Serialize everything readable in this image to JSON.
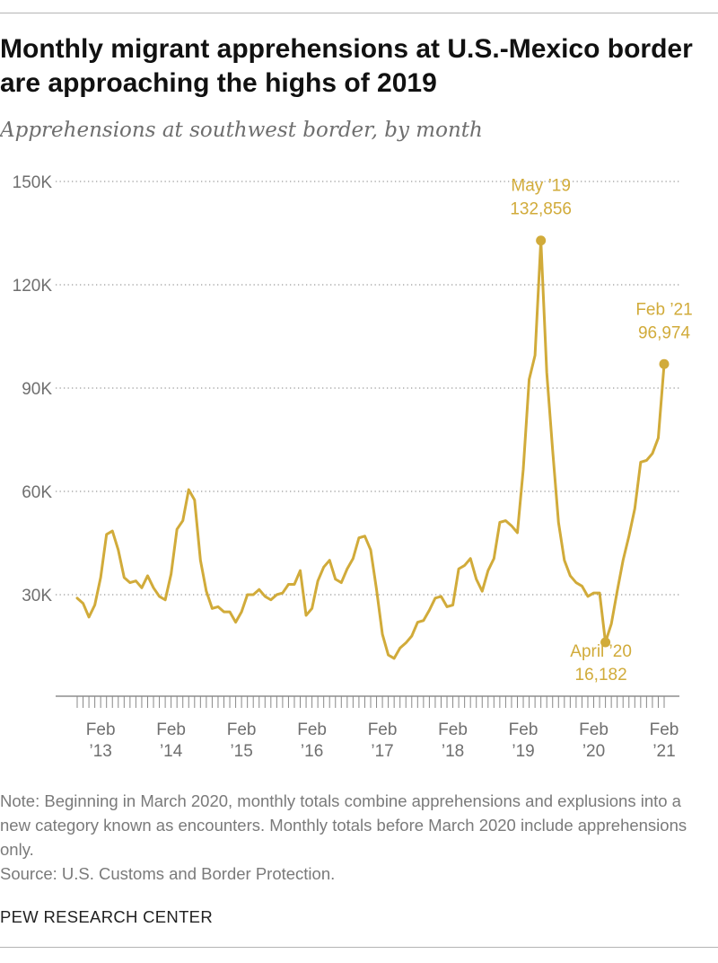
{
  "header": {
    "title": "Monthly migrant apprehensions at U.S.-Mexico border are approaching the highs of 2019",
    "subtitle": "Apprehensions at southwest border, by month"
  },
  "chart_data": {
    "type": "line",
    "color": "#d1ab3a",
    "ylim": [
      0,
      150000
    ],
    "y_ticks": [
      {
        "value": 30000,
        "label": "30K"
      },
      {
        "value": 60000,
        "label": "60K"
      },
      {
        "value": 90000,
        "label": "90K"
      },
      {
        "value": 120000,
        "label": "120K"
      },
      {
        "value": 150000,
        "label": "150K"
      }
    ],
    "x_ticks": [
      {
        "month": "2013-02",
        "label": [
          "Feb",
          "’13"
        ]
      },
      {
        "month": "2014-02",
        "label": [
          "Feb",
          "’14"
        ]
      },
      {
        "month": "2015-02",
        "label": [
          "Feb",
          "’15"
        ]
      },
      {
        "month": "2016-02",
        "label": [
          "Feb",
          "’16"
        ]
      },
      {
        "month": "2017-02",
        "label": [
          "Feb",
          "’17"
        ]
      },
      {
        "month": "2018-02",
        "label": [
          "Feb",
          "’18"
        ]
      },
      {
        "month": "2019-02",
        "label": [
          "Feb",
          "’19"
        ]
      },
      {
        "month": "2020-02",
        "label": [
          "Feb",
          "’20"
        ]
      },
      {
        "month": "2021-02",
        "label": [
          "Feb",
          "’21"
        ]
      }
    ],
    "grid": true,
    "series": [
      {
        "x": [
          "2012-10",
          "2012-11",
          "2012-12",
          "2013-01",
          "2013-02",
          "2013-03",
          "2013-04",
          "2013-05",
          "2013-06",
          "2013-07",
          "2013-08",
          "2013-09",
          "2013-10",
          "2013-11",
          "2013-12",
          "2014-01",
          "2014-02",
          "2014-03",
          "2014-04",
          "2014-05",
          "2014-06",
          "2014-07",
          "2014-08",
          "2014-09",
          "2014-10",
          "2014-11",
          "2014-12",
          "2015-01",
          "2015-02",
          "2015-03",
          "2015-04",
          "2015-05",
          "2015-06",
          "2015-07",
          "2015-08",
          "2015-09",
          "2015-10",
          "2015-11",
          "2015-12",
          "2016-01",
          "2016-02",
          "2016-03",
          "2016-04",
          "2016-05",
          "2016-06",
          "2016-07",
          "2016-08",
          "2016-09",
          "2016-10",
          "2016-11",
          "2016-12",
          "2017-01",
          "2017-02",
          "2017-03",
          "2017-04",
          "2017-05",
          "2017-06",
          "2017-07",
          "2017-08",
          "2017-09",
          "2017-10",
          "2017-11",
          "2017-12",
          "2018-01",
          "2018-02",
          "2018-03",
          "2018-04",
          "2018-05",
          "2018-06",
          "2018-07",
          "2018-08",
          "2018-09",
          "2018-10",
          "2018-11",
          "2018-12",
          "2019-01",
          "2019-02",
          "2019-03",
          "2019-04",
          "2019-05",
          "2019-06",
          "2019-07",
          "2019-08",
          "2019-09",
          "2019-10",
          "2019-11",
          "2019-12",
          "2020-01",
          "2020-02",
          "2020-03",
          "2020-04",
          "2020-05",
          "2020-06",
          "2020-07",
          "2020-08",
          "2020-09",
          "2020-10",
          "2020-11",
          "2020-12",
          "2021-01",
          "2021-02"
        ],
        "values": [
          29000,
          27500,
          23500,
          27000,
          35000,
          47500,
          48500,
          43000,
          35000,
          33500,
          34000,
          32000,
          35500,
          32000,
          29500,
          28500,
          36000,
          49000,
          51500,
          60500,
          57500,
          40000,
          31000,
          26000,
          26500,
          25000,
          25000,
          22000,
          25000,
          30000,
          30000,
          31500,
          29500,
          28500,
          30000,
          30500,
          33000,
          33000,
          37000,
          24000,
          26000,
          34000,
          38000,
          40000,
          34500,
          33500,
          37500,
          40500,
          46500,
          47000,
          43000,
          31500,
          18500,
          12500,
          11500,
          14500,
          16000,
          18000,
          22000,
          22500,
          25500,
          29000,
          29500,
          26500,
          27000,
          37500,
          38500,
          40500,
          34500,
          31000,
          37000,
          40500,
          51000,
          51500,
          50000,
          48000,
          66500,
          92500,
          99500,
          132856,
          94500,
          72000,
          51000,
          40000,
          35500,
          33500,
          32500,
          29500,
          30500,
          30500,
          16182,
          21500,
          31000,
          40000,
          47000,
          55000,
          68500,
          69000,
          71000,
          75500,
          96974
        ]
      }
    ],
    "annotations": [
      {
        "month": "2019-05",
        "value": 132856,
        "label": "May ’19",
        "value_label": "132,856"
      },
      {
        "month": "2020-04",
        "value": 16182,
        "label": "April ’20",
        "value_label": "16,182"
      },
      {
        "month": "2021-02",
        "value": 96974,
        "label": "Feb ’21",
        "value_label": "96,974"
      }
    ]
  },
  "notes": {
    "note": "Note: Beginning in March 2020, monthly totals combine apprehensions and explusions into a new category known as encounters. Monthly totals before March 2020 include apprehensions only.",
    "source": "Source: U.S. Customs and Border Protection."
  },
  "footer": {
    "brand": "PEW RESEARCH CENTER"
  }
}
